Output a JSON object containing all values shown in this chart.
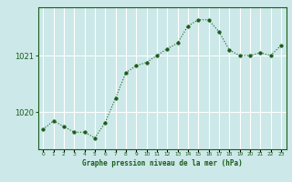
{
  "x": [
    0,
    1,
    2,
    3,
    4,
    5,
    6,
    7,
    8,
    9,
    10,
    11,
    12,
    13,
    14,
    15,
    16,
    17,
    18,
    19,
    20,
    21,
    22,
    23
  ],
  "y": [
    1019.7,
    1019.85,
    1019.75,
    1019.65,
    1019.65,
    1019.55,
    1019.82,
    1020.25,
    1020.7,
    1020.82,
    1020.88,
    1021.0,
    1021.12,
    1021.22,
    1021.52,
    1021.63,
    1021.63,
    1021.42,
    1021.1,
    1021.0,
    1021.0,
    1021.05,
    1021.0,
    1021.18
  ],
  "line_color": "#1a5c1a",
  "marker_color": "#1a5c1a",
  "bg_color": "#cce8e8",
  "grid_color": "#ffffff",
  "title": "Graphe pression niveau de la mer (hPa)",
  "ylabel_ticks": [
    1020,
    1021
  ],
  "ylim": [
    1019.35,
    1021.85
  ],
  "xlim": [
    -0.5,
    23.5
  ]
}
